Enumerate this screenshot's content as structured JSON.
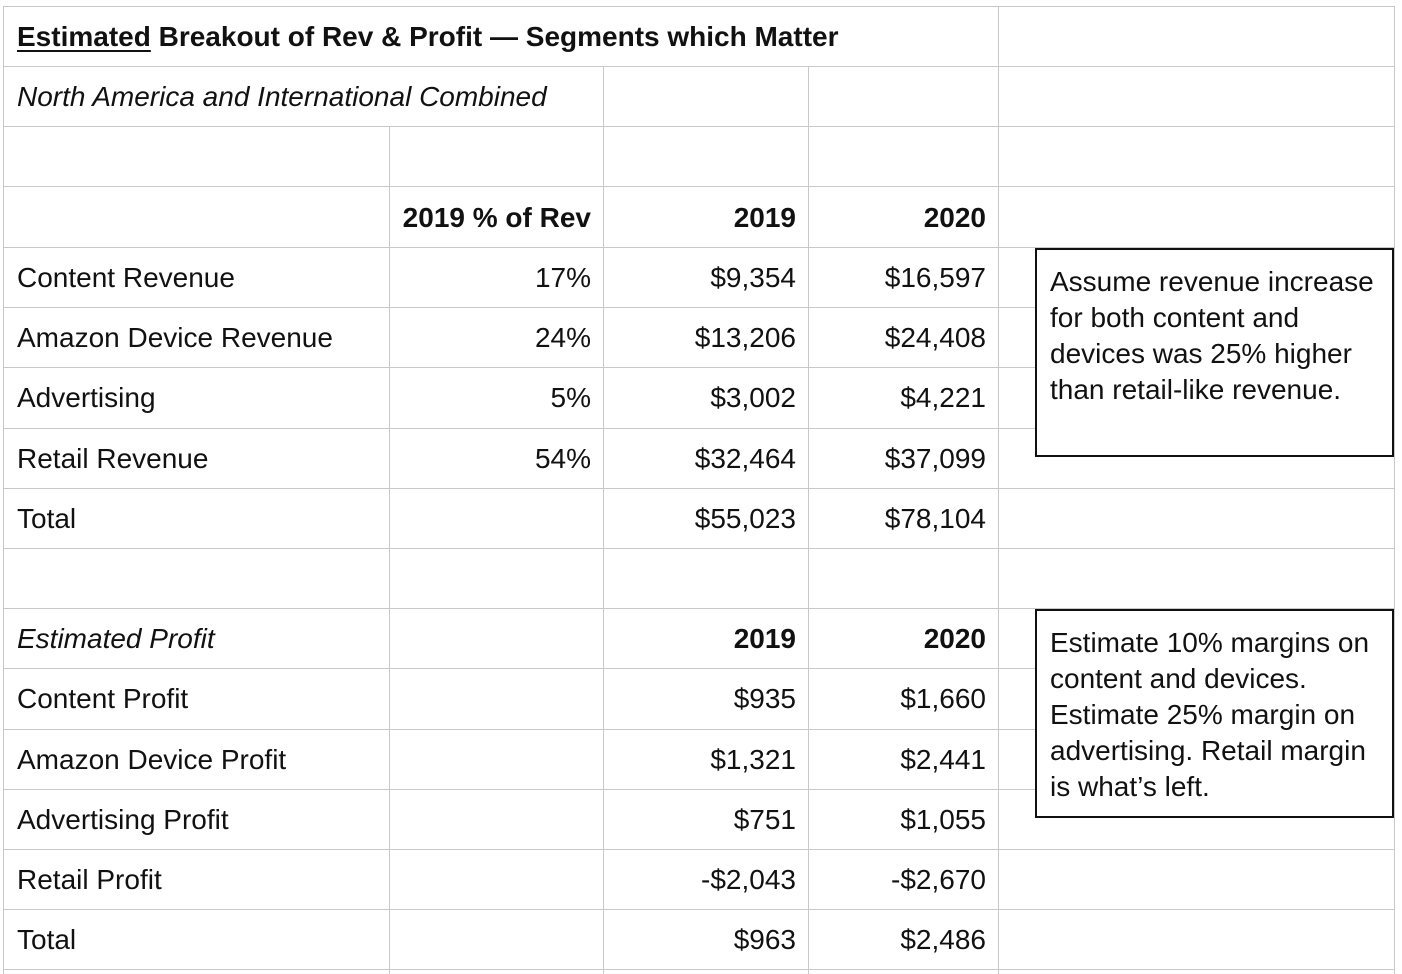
{
  "title": {
    "underlined": "Estimated",
    "rest": " Breakout of Rev & Profit — Segments which Matter"
  },
  "subtitle": "North America and International Combined",
  "revenue_header": {
    "pct": "2019 % of Rev",
    "y1": "2019",
    "y2": "2020"
  },
  "revenue_rows": [
    {
      "label": "Content Revenue",
      "pct": "17%",
      "y2019": "$9,354",
      "y2020": "$16,597"
    },
    {
      "label": "Amazon Device Revenue",
      "pct": "24%",
      "y2019": "$13,206",
      "y2020": "$24,408"
    },
    {
      "label": "Advertising",
      "pct": "5%",
      "y2019": "$3,002",
      "y2020": "$4,221"
    },
    {
      "label": "Retail Revenue",
      "pct": "54%",
      "y2019": "$32,464",
      "y2020": "$37,099"
    },
    {
      "label": "Total",
      "pct": "",
      "y2019": "$55,023",
      "y2020": "$78,104"
    }
  ],
  "profit_header": {
    "label": "Estimated Profit",
    "y1": "2019",
    "y2": "2020"
  },
  "profit_rows": [
    {
      "label": "Content Profit",
      "y2019": "$935",
      "y2020": "$1,660"
    },
    {
      "label": "Amazon Device Profit",
      "y2019": "$1,321",
      "y2020": "$2,441"
    },
    {
      "label": "Advertising Profit",
      "y2019": "$751",
      "y2020": "$1,055"
    },
    {
      "label": "Retail Profit",
      "y2019": "-$2,043",
      "y2020": "-$2,670"
    },
    {
      "label": "Total",
      "y2019": "$963",
      "y2020": "$2,486"
    }
  ],
  "notes": {
    "revenue": "Assume revenue increase for both content and devices was 25% higher than retail-like revenue.",
    "profit": "Estimate 10% margins on content and devices. Estimate 25% margin on advertising. Retail margin is what’s left."
  }
}
